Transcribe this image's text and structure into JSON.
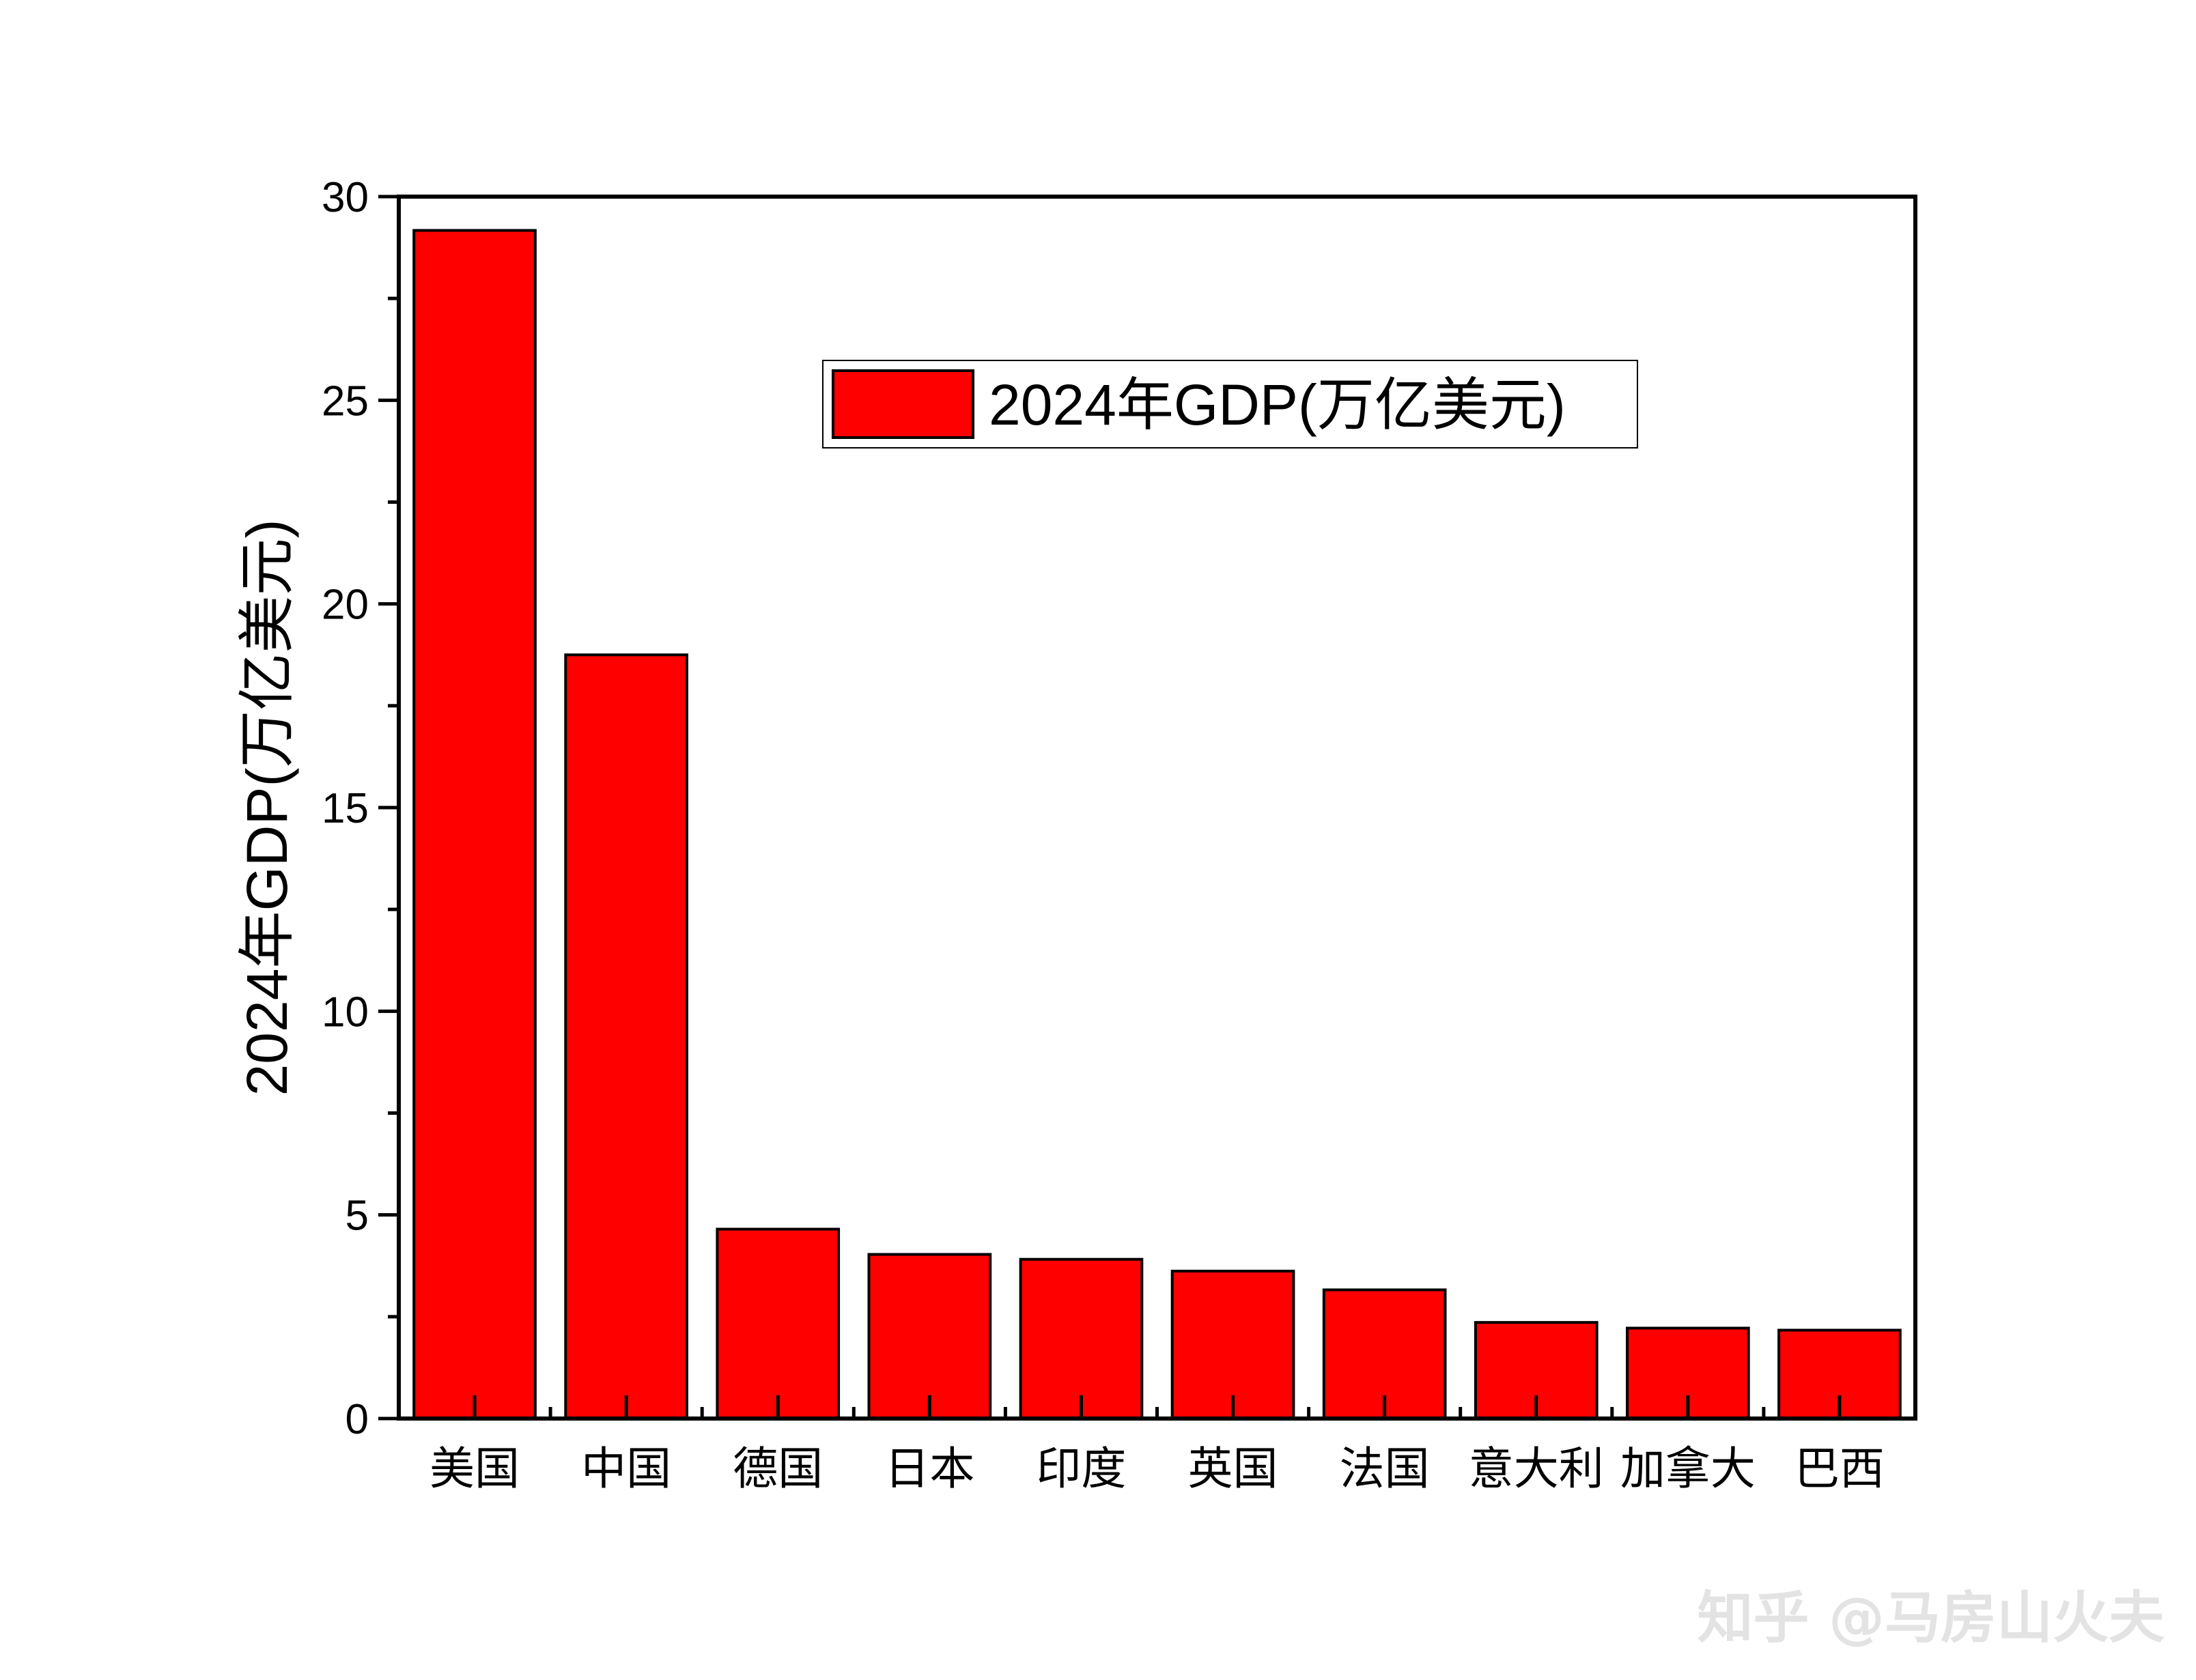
{
  "chart_data": {
    "type": "bar",
    "categories": [
      "美国",
      "中国",
      "德国",
      "日本",
      "印度",
      "英国",
      "法国",
      "意大利",
      "加拿大",
      "巴西"
    ],
    "series": [
      {
        "name": "2024年GDP(万亿美元)",
        "values": [
          29.17,
          18.75,
          4.65,
          4.03,
          3.91,
          3.62,
          3.16,
          2.36,
          2.22,
          2.17
        ],
        "color": "#ff0000"
      }
    ],
    "ylabel": "2024年GDP(万亿美元)",
    "xlabel": "",
    "ylim": [
      0,
      30
    ],
    "yticks": [
      "0",
      "5",
      "10",
      "15",
      "20",
      "25",
      "30"
    ],
    "grid": false,
    "legend_position": "top-right"
  },
  "watermark": "知乎 @马房山火夫"
}
